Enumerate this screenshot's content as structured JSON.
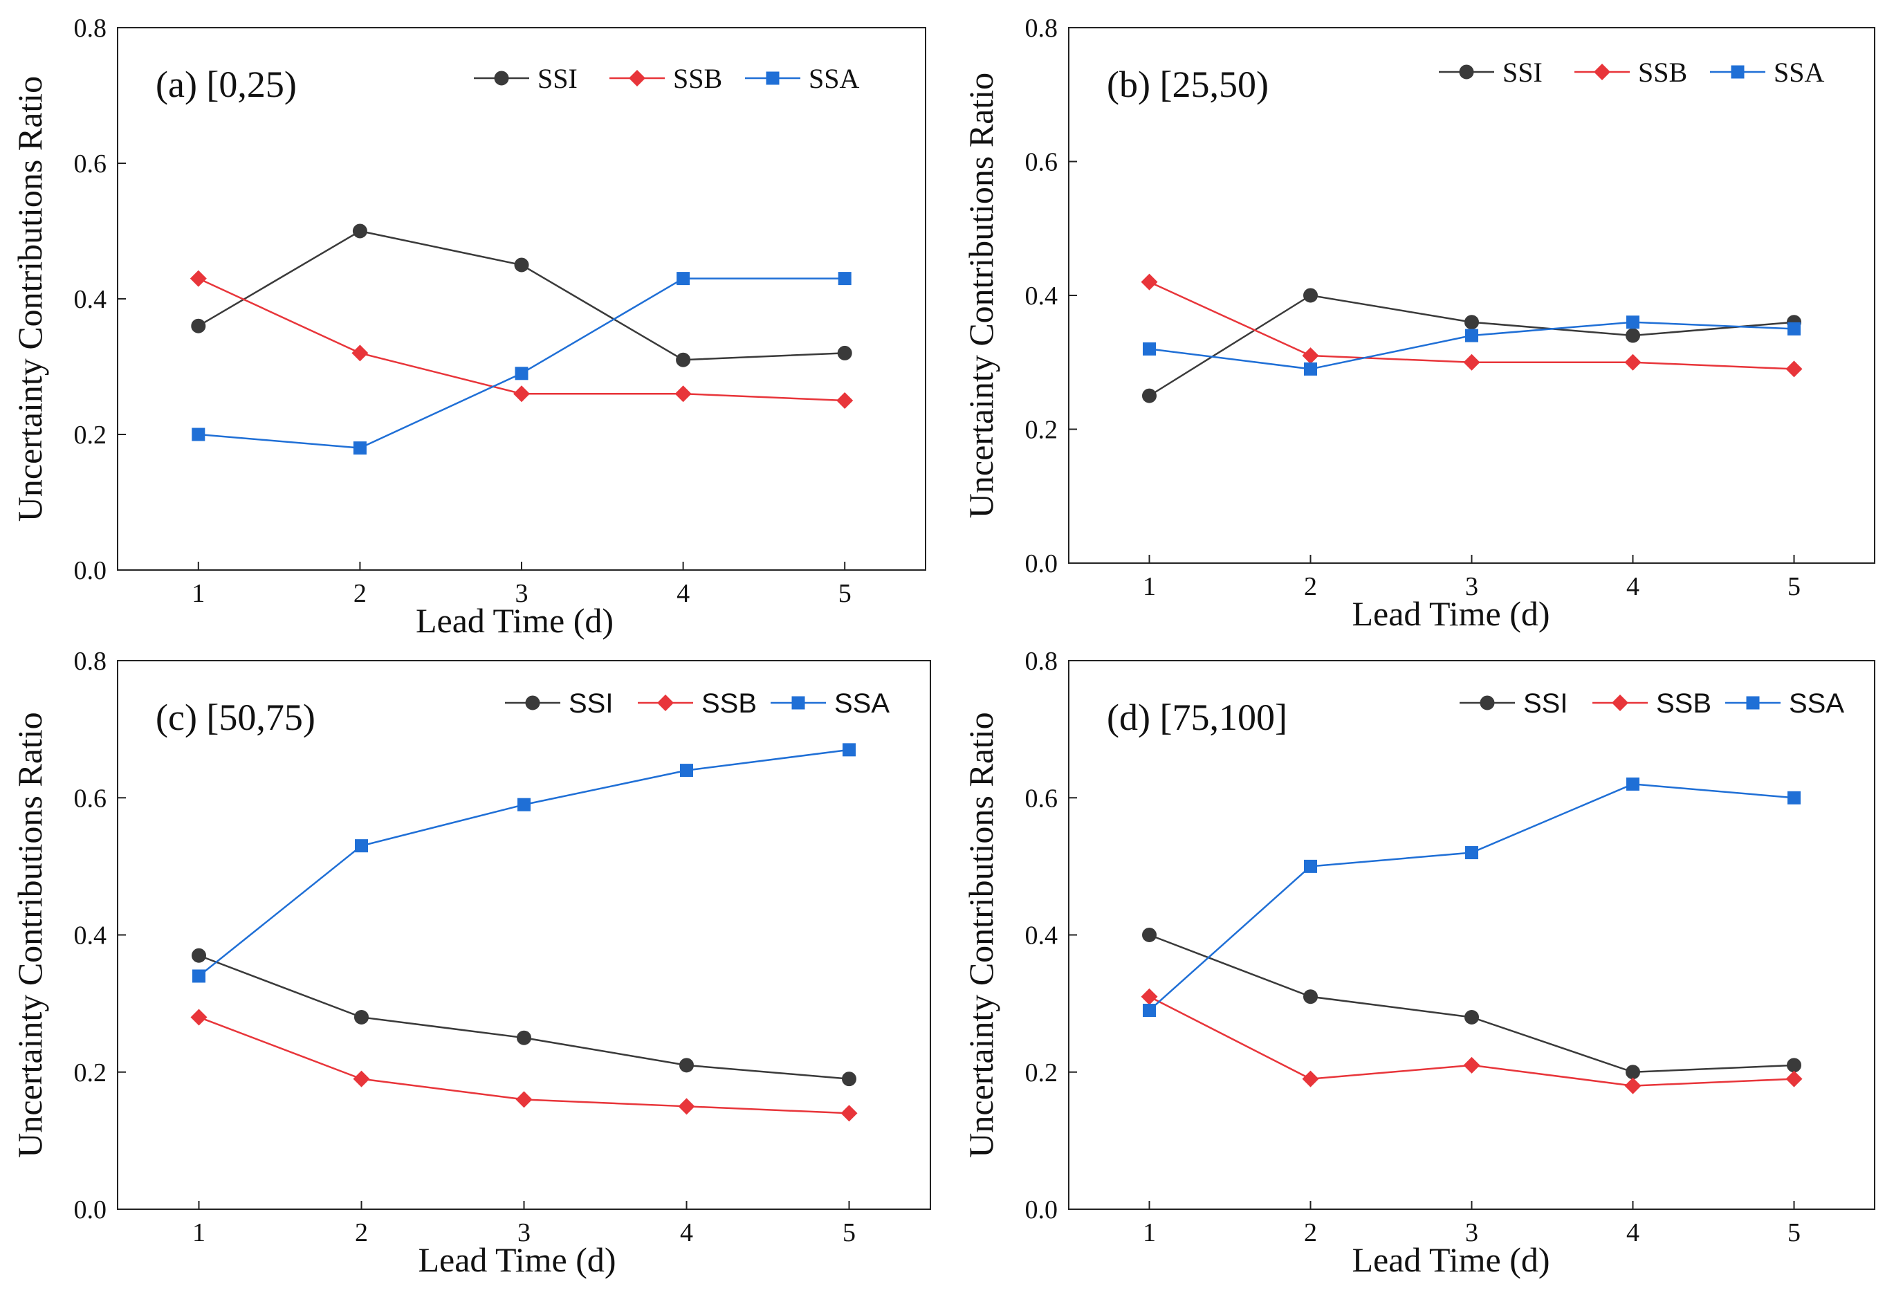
{
  "colors": {
    "SSI": "#3a3a3a",
    "SSB": "#e8353a",
    "SSA": "#1f6fd6",
    "axis": "#222222"
  },
  "chart_data": [
    {
      "type": "line",
      "panel_label": "(a) [0,25)",
      "xlabel": "Lead Time (d)",
      "ylabel": "Uncertainty Contributions Ratio",
      "x": [
        1,
        2,
        3,
        4,
        5
      ],
      "xlim": [
        0.5,
        5.5
      ],
      "ylim": [
        0.0,
        0.8
      ],
      "yticks": [
        "0.0",
        "0.2",
        "0.4",
        "0.6",
        "0.8"
      ],
      "grid": false,
      "legend": "top-right",
      "series": [
        {
          "name": "SSI",
          "marker": "circle",
          "values": [
            0.36,
            0.5,
            0.45,
            0.31,
            0.32
          ]
        },
        {
          "name": "SSB",
          "marker": "diamond",
          "values": [
            0.43,
            0.32,
            0.26,
            0.26,
            0.25
          ]
        },
        {
          "name": "SSA",
          "marker": "square",
          "values": [
            0.2,
            0.18,
            0.29,
            0.43,
            0.43
          ]
        }
      ]
    },
    {
      "type": "line",
      "panel_label": "(b) [25,50)",
      "xlabel": "Lead Time (d)",
      "ylabel": "Uncertainty Contributions Ratio",
      "x": [
        1,
        2,
        3,
        4,
        5
      ],
      "xlim": [
        0.5,
        5.5
      ],
      "ylim": [
        0.0,
        0.8
      ],
      "yticks": [
        "0.0",
        "0.2",
        "0.4",
        "0.6",
        "0.8"
      ],
      "grid": false,
      "legend": "top-right",
      "series": [
        {
          "name": "SSI",
          "marker": "circle",
          "values": [
            0.25,
            0.4,
            0.36,
            0.34,
            0.36
          ]
        },
        {
          "name": "SSB",
          "marker": "diamond",
          "values": [
            0.42,
            0.31,
            0.3,
            0.3,
            0.29
          ]
        },
        {
          "name": "SSA",
          "marker": "square",
          "values": [
            0.32,
            0.29,
            0.34,
            0.36,
            0.35
          ]
        }
      ]
    },
    {
      "type": "line",
      "panel_label": "(c) [50,75)",
      "xlabel": "Lead Time (d)",
      "ylabel": "Uncertainty Contributions Ratio",
      "x": [
        1,
        2,
        3,
        4,
        5
      ],
      "xlim": [
        0.5,
        5.5
      ],
      "ylim": [
        0.0,
        0.8
      ],
      "yticks": [
        "0.0",
        "0.2",
        "0.4",
        "0.6",
        "0.8"
      ],
      "grid": false,
      "legend": "top-right",
      "series": [
        {
          "name": "SSI",
          "marker": "circle",
          "values": [
            0.37,
            0.28,
            0.25,
            0.21,
            0.19
          ]
        },
        {
          "name": "SSB",
          "marker": "diamond",
          "values": [
            0.28,
            0.19,
            0.16,
            0.15,
            0.14
          ]
        },
        {
          "name": "SSA",
          "marker": "square",
          "values": [
            0.34,
            0.53,
            0.59,
            0.64,
            0.67
          ]
        }
      ]
    },
    {
      "type": "line",
      "panel_label": "(d) [75,100]",
      "xlabel": "Lead Time (d)",
      "ylabel": "Uncertainty Contributions Ratio",
      "x": [
        1,
        2,
        3,
        4,
        5
      ],
      "xlim": [
        0.5,
        5.5
      ],
      "ylim": [
        0.0,
        0.8
      ],
      "yticks": [
        "0.0",
        "0.2",
        "0.4",
        "0.6",
        "0.8"
      ],
      "grid": false,
      "legend": "top-right",
      "series": [
        {
          "name": "SSI",
          "marker": "circle",
          "values": [
            0.4,
            0.31,
            0.28,
            0.2,
            0.21
          ]
        },
        {
          "name": "SSB",
          "marker": "diamond",
          "values": [
            0.31,
            0.19,
            0.21,
            0.18,
            0.19
          ]
        },
        {
          "name": "SSA",
          "marker": "square",
          "values": [
            0.29,
            0.5,
            0.52,
            0.62,
            0.6
          ]
        }
      ]
    }
  ]
}
